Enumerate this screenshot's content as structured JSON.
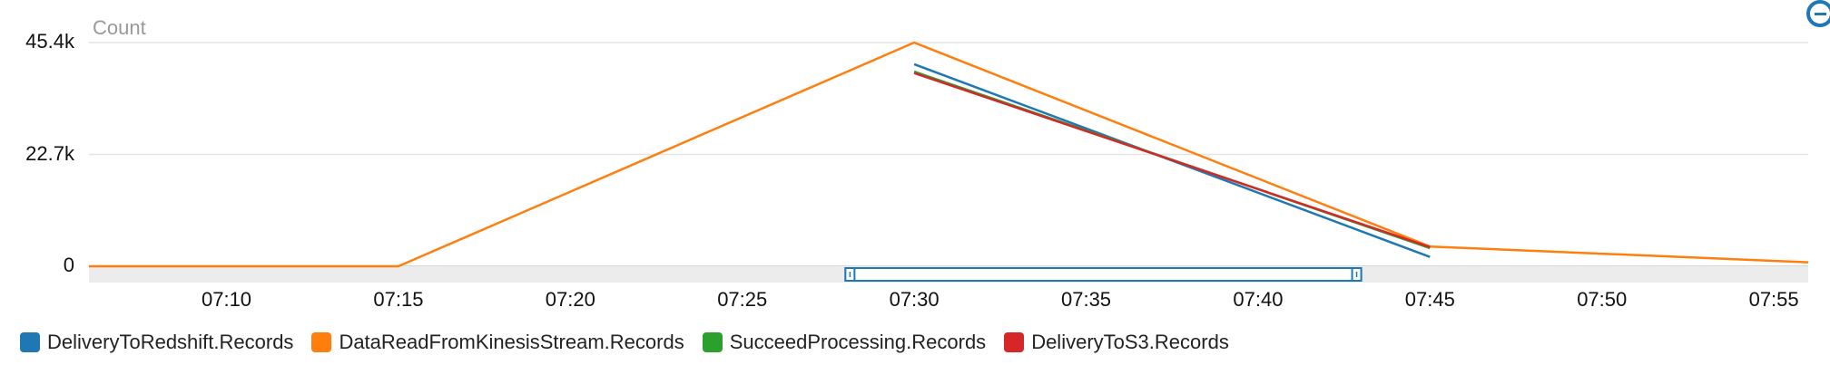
{
  "chart_data": {
    "type": "line",
    "ylabel": "Count",
    "ylim": [
      0,
      45400
    ],
    "y_ticks": [
      {
        "value": 0,
        "label": "0"
      },
      {
        "value": 22700,
        "label": "22.7k"
      },
      {
        "value": 45400,
        "label": "45.4k"
      }
    ],
    "xlim": [
      "07:06",
      "07:56"
    ],
    "x_ticks": [
      "07:10",
      "07:15",
      "07:20",
      "07:25",
      "07:30",
      "07:35",
      "07:40",
      "07:45",
      "07:50",
      "07:55"
    ],
    "grid": true,
    "legend_position": "bottom",
    "series": [
      {
        "name": "DeliveryToRedshift.Records",
        "color": "#1f77b4",
        "points": [
          [
            "07:30",
            41000
          ],
          [
            "07:45",
            1900
          ]
        ]
      },
      {
        "name": "DataReadFromKinesisStream.Records",
        "color": "#ff7f0e",
        "points": [
          [
            "07:06",
            0
          ],
          [
            "07:15",
            0
          ],
          [
            "07:30",
            45400
          ],
          [
            "07:45",
            4000
          ],
          [
            "07:56",
            800
          ]
        ]
      },
      {
        "name": "SucceedProcessing.Records",
        "color": "#2ca02c",
        "points": [
          [
            "07:30",
            39500
          ],
          [
            "07:45",
            3700
          ]
        ]
      },
      {
        "name": "DeliveryToS3.Records",
        "color": "#d62728",
        "points": [
          [
            "07:30",
            39200
          ],
          [
            "07:45",
            3900
          ]
        ]
      }
    ],
    "time_range_selector": {
      "from": "07:28",
      "to": "07:43"
    }
  }
}
